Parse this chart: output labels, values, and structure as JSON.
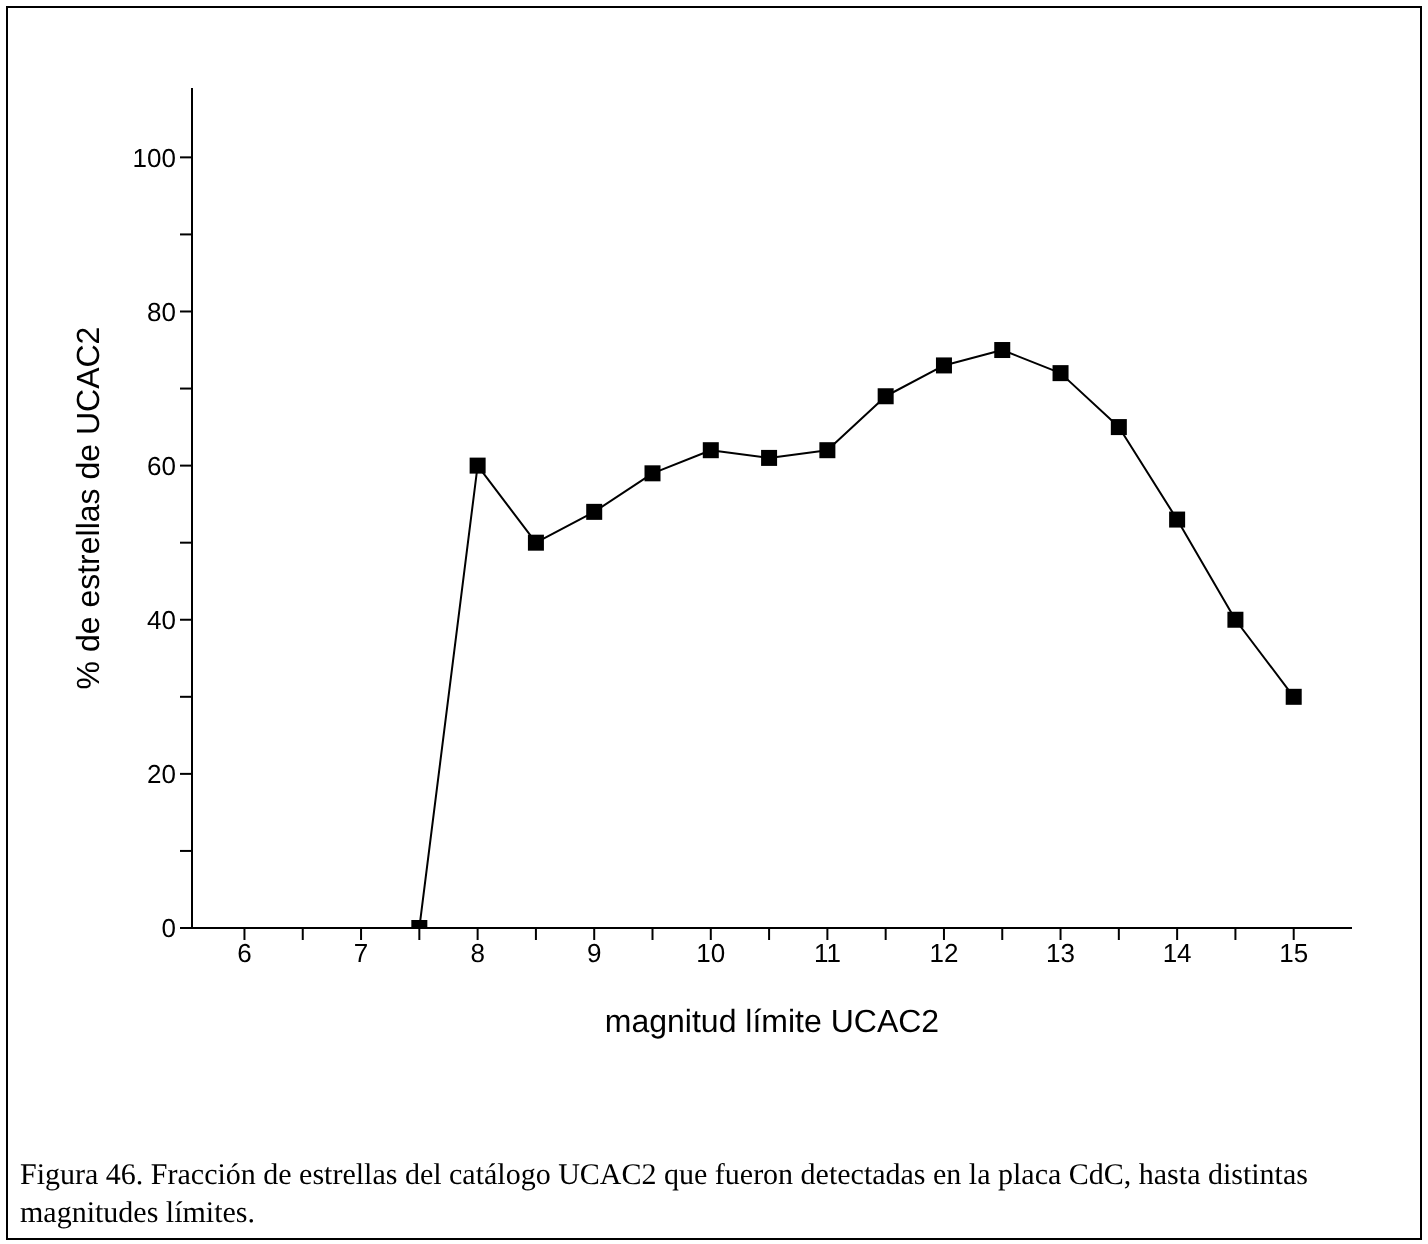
{
  "chart_data": {
    "type": "line",
    "xlabel": "magnitud límite UCAC2",
    "ylabel": "% de estrellas de UCAC2",
    "x": [
      7.5,
      8,
      8.5,
      9,
      9.5,
      10,
      10.5,
      11,
      11.5,
      12,
      12.5,
      13,
      13.5,
      14,
      14.5,
      15
    ],
    "series": [
      {
        "color": "#000000",
        "values": [
          0,
          60,
          50,
          54,
          59,
          62,
          61,
          62,
          69,
          73,
          75,
          72,
          65,
          53,
          40,
          30
        ]
      }
    ],
    "xlim": [
      5.55,
      15.5
    ],
    "ylim": [
      0,
      109
    ],
    "xticks": [
      6,
      {
        "value": 6.5,
        "label": null
      },
      7,
      {
        "value": 7.5,
        "label": null
      },
      8,
      {
        "value": 8.5,
        "label": null
      },
      9,
      {
        "value": 9.5,
        "label": null
      },
      10,
      {
        "value": 10.5,
        "label": null
      },
      11,
      {
        "value": 11.5,
        "label": null
      },
      12,
      {
        "value": 12.5,
        "label": null
      },
      13,
      {
        "value": 13.5,
        "label": null
      },
      14,
      {
        "value": 14.5,
        "label": null
      },
      15
    ],
    "yticks": [
      0,
      {
        "value": 10,
        "label": null
      },
      20,
      {
        "value": 30,
        "label": null
      },
      40,
      {
        "value": 50,
        "label": null
      },
      60,
      {
        "value": 70,
        "label": null
      },
      80,
      {
        "value": 90,
        "label": null
      },
      100
    ],
    "marker": "square",
    "line_style": "solid",
    "grid": false,
    "legend": false,
    "annotations": [
      "Figura 46. Fracción de estrellas del catálogo UCAC2 que fueron detectadas en la placa CdC, hasta distintas magnitudes límites."
    ]
  }
}
